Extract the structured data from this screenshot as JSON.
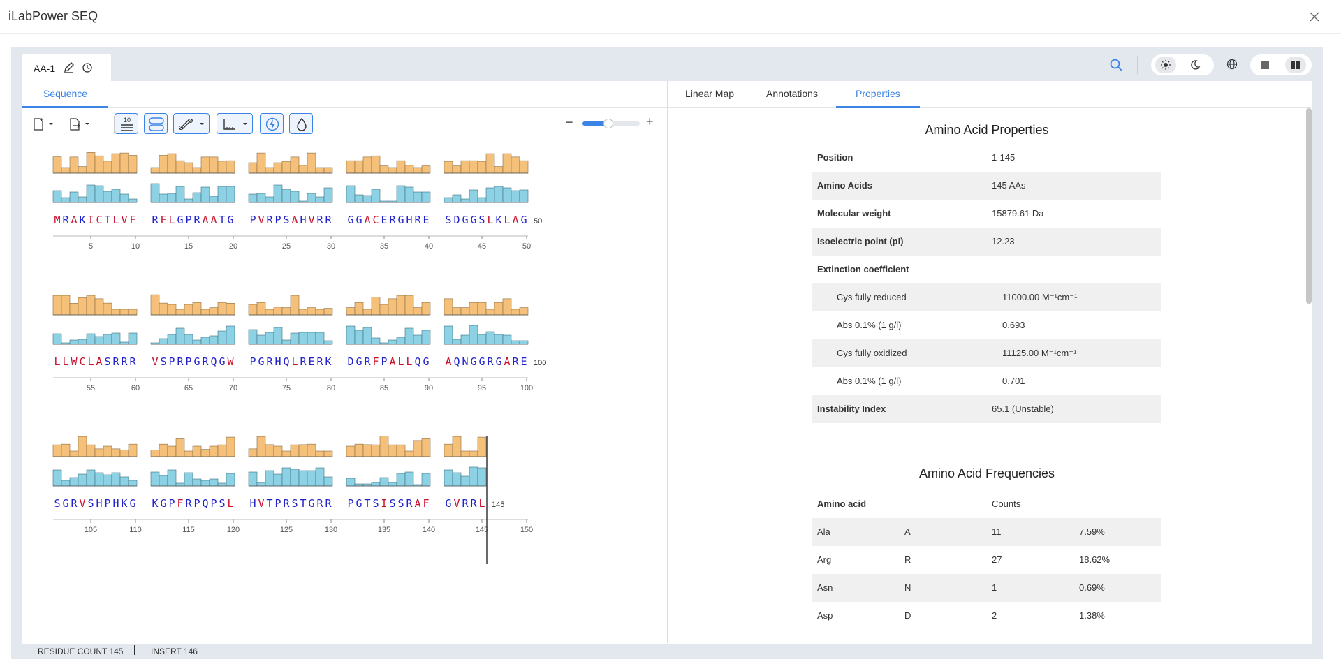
{
  "app": {
    "title": "iLabPower SEQ"
  },
  "doc_tab": {
    "label": "AA-1"
  },
  "left_tabs": [
    {
      "label": "Sequence"
    }
  ],
  "toolbar": {
    "ruler_label": "10"
  },
  "zoom": {
    "minus": "−",
    "plus": "+",
    "level": 0.45
  },
  "sequence": {
    "blocks": [
      "MRAKICTLVF",
      "RFLGPRAATG",
      "PVRPSAHVRR",
      "GGACERGHRE",
      "SDGGSLKLAG",
      "LLWCLASRRR",
      "VSPRPGRQGW",
      "PGRHQLRERK",
      "DGRFPALLQG",
      "AQNGGRGARE",
      "SGRVSHPHKG",
      "KGPFRPQPSL",
      "HVTPRSTGRR",
      "PGTSISSRAF",
      "GVRRL"
    ],
    "line_end_labels": [
      "50",
      "100",
      "145"
    ],
    "ruler_ticks": [
      [
        "5",
        "10",
        "15",
        "20",
        "25",
        "30",
        "35",
        "40",
        "45",
        "50"
      ],
      [
        "55",
        "60",
        "65",
        "70",
        "75",
        "80",
        "85",
        "90",
        "95",
        "100"
      ],
      [
        "105",
        "110",
        "115",
        "120",
        "125",
        "130",
        "135",
        "140",
        "145",
        "150"
      ]
    ],
    "colors": {
      "hydrophobic": "#c8102e",
      "polar": "#2222cc",
      "bar_orange": "#f5c07a",
      "bar_blue": "#8dd2e4"
    }
  },
  "right_tabs": [
    {
      "label": "Linear Map"
    },
    {
      "label": "Annotations"
    },
    {
      "label": "Properties",
      "active": true
    }
  ],
  "properties": {
    "title": "Amino Acid Properties",
    "rows": [
      {
        "key": "Position",
        "value": "1-145"
      },
      {
        "key": "Amino Acids",
        "value": "145 AAs"
      },
      {
        "key": "Molecular weight",
        "value": "15879.61 Da"
      },
      {
        "key": "Isoelectric point (pI)",
        "value": "12.23"
      },
      {
        "key": "Extinction coefficient",
        "value": ""
      },
      {
        "key": "Cys fully reduced",
        "value": "11000.00 M⁻¹cm⁻¹",
        "sub": true
      },
      {
        "key": "Abs 0.1% (1 g/l)",
        "value": "0.693",
        "sub": true
      },
      {
        "key": "Cys fully oxidized",
        "value": "11125.00 M⁻¹cm⁻¹",
        "sub": true
      },
      {
        "key": "Abs 0.1% (1 g/l)",
        "value": "0.701",
        "sub": true
      },
      {
        "key": "Instability Index",
        "value": "65.1 (Unstable)"
      }
    ]
  },
  "frequencies": {
    "title": "Amino Acid Frequencies",
    "header": {
      "name": "Amino acid",
      "count": "Counts"
    },
    "rows": [
      {
        "name": "Ala",
        "code": "A",
        "count": "11",
        "pct": "7.59%"
      },
      {
        "name": "Arg",
        "code": "R",
        "count": "27",
        "pct": "18.62%"
      },
      {
        "name": "Asn",
        "code": "N",
        "count": "1",
        "pct": "0.69%"
      },
      {
        "name": "Asp",
        "code": "D",
        "count": "2",
        "pct": "1.38%"
      }
    ]
  },
  "status": {
    "residue": "RESIDUE COUNT 145",
    "insert": "INSERT 146"
  }
}
